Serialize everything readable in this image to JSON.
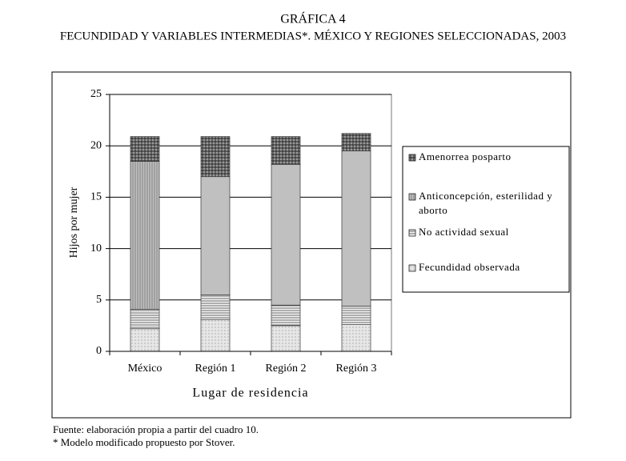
{
  "chart_data": {
    "type": "stacked_bar",
    "title": "GRÁFICA 4",
    "subtitle": "FECUNDIDAD Y VARIABLES INTERMEDIAS*. MÉXICO Y REGIONES SELECCIONADAS, 2003",
    "y_label": "Hijos por mujer",
    "x_label": "Lugar de residencia",
    "categories": [
      "México",
      "Región 1",
      "Región 2",
      "Región 3"
    ],
    "series": [
      {
        "name": "Fecundidad observada",
        "color": "#e6e6e6",
        "values": [
          2.2,
          3.1,
          2.5,
          2.6
        ]
      },
      {
        "name": "No actividad sexual",
        "color": "#f4f4f4",
        "values": [
          1.9,
          2.4,
          2.0,
          1.8
        ]
      },
      {
        "name": "Anticoncepción, esterilidad y aborto",
        "color": "#c0c0c0",
        "values": [
          14.4,
          11.5,
          13.7,
          15.1
        ]
      },
      {
        "name": "Amenorrea posparto",
        "color": "#9a9a9a",
        "values": [
          2.4,
          3.9,
          2.7,
          1.7
        ]
      }
    ],
    "ylim": [
      0,
      25
    ],
    "yticks": [
      0,
      5,
      10,
      15,
      20,
      25
    ],
    "grid": true,
    "notes": [
      "Fuente: elaboración propia a partir del cuadro 10.",
      "* Modelo modificado propuesto por Stover."
    ]
  }
}
